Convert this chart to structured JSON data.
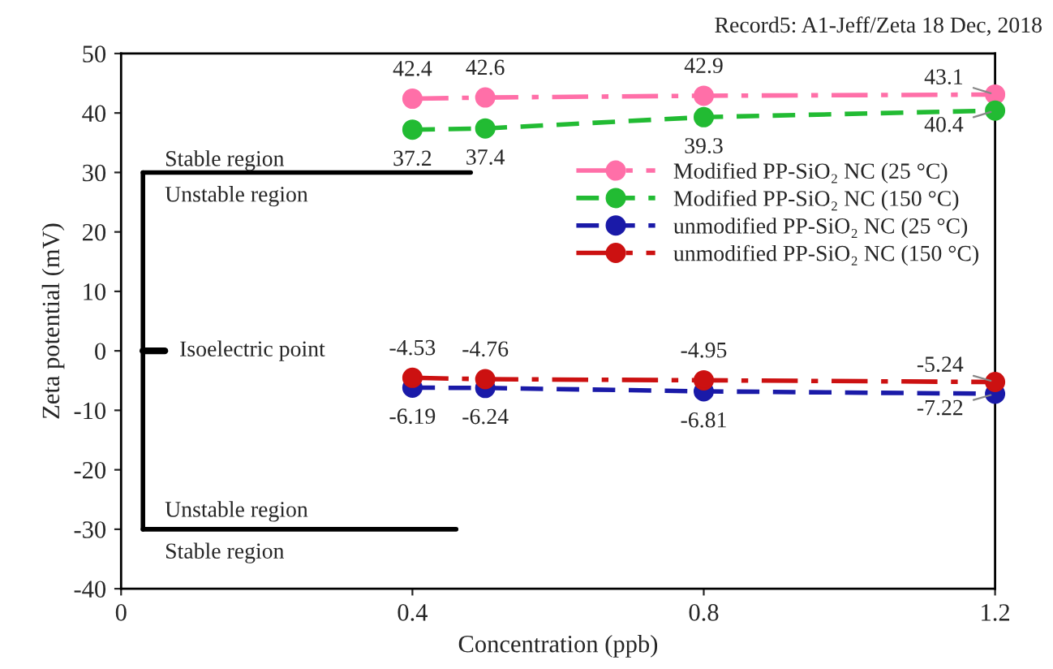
{
  "chart_data": {
    "type": "line",
    "xlabel": "Concentration (ppb)",
    "ylabel": "Zeta potential (mV)",
    "x": [
      0.4,
      0.5,
      0.8,
      1.2
    ],
    "xlim": [
      0,
      1.2
    ],
    "xticks": [
      0,
      0.4,
      0.8,
      1.2
    ],
    "ylim": [
      -40,
      50
    ],
    "yticks": [
      -40,
      -30,
      -20,
      -10,
      0,
      10,
      20,
      30,
      40,
      50
    ],
    "grid": false,
    "legend": "right",
    "marker": "circle",
    "data_labels": true,
    "series": [
      {
        "name": "Modified PP-SiO₂ NC (25 °C)",
        "color": "#ff6fa8",
        "line_style": "dashdot",
        "values": [
          42.4,
          42.6,
          42.9,
          43.1
        ]
      },
      {
        "name": "Modified PP-SiO₂ NC (150 °C)",
        "color": "#22bb33",
        "line_style": "dashed",
        "values": [
          37.2,
          37.4,
          39.3,
          40.4
        ]
      },
      {
        "name": "unmodified PP-SiO₂ NC (25 °C)",
        "color": "#1a1aa8",
        "line_style": "dashed",
        "values": [
          -6.19,
          -6.24,
          -6.81,
          -7.22
        ]
      },
      {
        "name": "unmodified PP-SiO₂ NC (150 °C)",
        "color": "#cc1111",
        "line_style": "dashdot",
        "values": [
          -4.53,
          -4.76,
          -4.95,
          -5.24
        ]
      }
    ],
    "annotations": [
      "Record5: A1-Jeff/Zeta 18 Dec, 2018",
      "Stable region",
      "Unstable region",
      "Isoelectric point",
      "Unstable region",
      "Stable region"
    ]
  }
}
